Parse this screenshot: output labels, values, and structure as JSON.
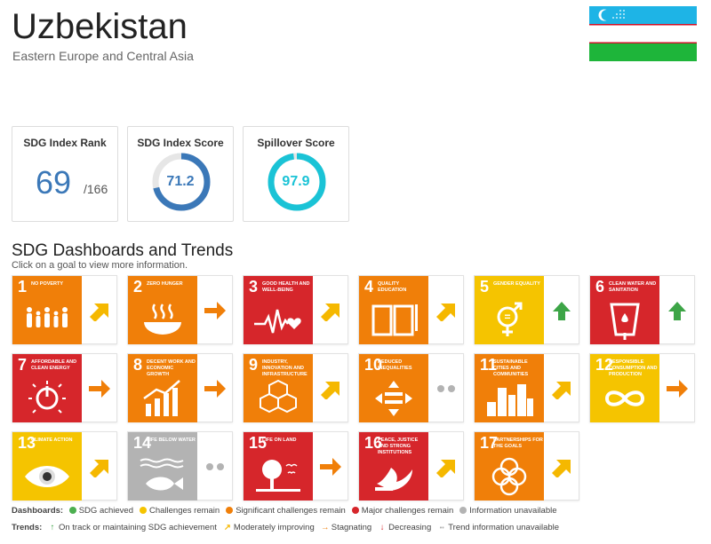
{
  "header": {
    "country": "Uzbekistan",
    "region": "Eastern Europe and Central Asia"
  },
  "flag": {
    "blue": "#1eb4e6",
    "white": "#ffffff",
    "red": "#ce1126",
    "green": "#1eb53a"
  },
  "cards": {
    "rank": {
      "title": "SDG Index Rank",
      "value": "69",
      "total": "/166"
    },
    "score": {
      "title": "SDG Index Score",
      "value": "71.2",
      "fraction": 0.712,
      "color": "#3b78b8"
    },
    "spillover": {
      "title": "Spillover Score",
      "value": "97.9",
      "fraction": 0.979,
      "color": "#1ac3d6"
    }
  },
  "dashboards": {
    "title": "SDG Dashboards and Trends",
    "subtitle": "Click on a goal to view more information."
  },
  "goals": [
    {
      "num": "1",
      "name": "No poverty",
      "color": "#e5243b",
      "status": "significant",
      "trend": "moderate",
      "icon": "people-icon"
    },
    {
      "num": "2",
      "name": "Zero hunger",
      "color": "#dda63a",
      "status": "significant",
      "trend": "stagnating",
      "icon": "bowl-icon"
    },
    {
      "num": "3",
      "name": "Good health and well-being",
      "color": "#4c9f38",
      "status": "major",
      "trend": "moderate",
      "icon": "heartbeat-icon"
    },
    {
      "num": "4",
      "name": "Quality education",
      "color": "#c5192d",
      "status": "significant",
      "trend": "moderate",
      "icon": "book-icon"
    },
    {
      "num": "5",
      "name": "Gender equality",
      "color": "#ff3a21",
      "status": "challenges",
      "trend": "on-track",
      "icon": "gender-icon"
    },
    {
      "num": "6",
      "name": "Clean water and sanitation",
      "color": "#26bde2",
      "status": "major",
      "trend": "on-track",
      "icon": "water-icon"
    },
    {
      "num": "7",
      "name": "Affordable and clean energy",
      "color": "#fcc30b",
      "status": "major",
      "trend": "stagnating",
      "icon": "power-icon"
    },
    {
      "num": "8",
      "name": "Decent work and economic growth",
      "color": "#a21942",
      "status": "significant",
      "trend": "stagnating",
      "icon": "growth-icon"
    },
    {
      "num": "9",
      "name": "Industry, innovation and infrastructure",
      "color": "#fd6925",
      "status": "significant",
      "trend": "moderate",
      "icon": "cubes-icon"
    },
    {
      "num": "10",
      "name": "Reduced inequalities",
      "color": "#dd1367",
      "status": "significant",
      "trend": "na",
      "icon": "equal-icon"
    },
    {
      "num": "11",
      "name": "Sustainable cities and communities",
      "color": "#fd9d24",
      "status": "significant",
      "trend": "moderate",
      "icon": "city-icon"
    },
    {
      "num": "12",
      "name": "Responsible consumption and production",
      "color": "#bf8b2e",
      "status": "challenges",
      "trend": "stagnating",
      "icon": "infinity-icon"
    },
    {
      "num": "13",
      "name": "Climate action",
      "color": "#3f7e44",
      "status": "challenges",
      "trend": "moderate",
      "icon": "eye-globe-icon"
    },
    {
      "num": "14",
      "name": "Life below water",
      "color": "#0a97d9",
      "status": "na",
      "trend": "na",
      "icon": "fish-icon"
    },
    {
      "num": "15",
      "name": "Life on land",
      "color": "#56c02b",
      "status": "major",
      "trend": "stagnating",
      "icon": "tree-icon"
    },
    {
      "num": "16",
      "name": "Peace, justice and strong institutions",
      "color": "#00689d",
      "status": "major",
      "trend": "moderate",
      "icon": "dove-icon"
    },
    {
      "num": "17",
      "name": "Partnerships for the goals",
      "color": "#19486a",
      "status": "significant",
      "trend": "moderate",
      "icon": "rings-icon"
    }
  ],
  "status_colors": {
    "achieved": "#4caf50",
    "challenges": "#f5c400",
    "significant": "#f07f09",
    "major": "#d6262b",
    "na": "#b3b3b3"
  },
  "trend_colors": {
    "on-track": "#3da547",
    "moderate": "#f5b800",
    "stagnating": "#f07f09",
    "decreasing": "#d6262b",
    "na": "#b3b3b3"
  },
  "legend": {
    "dashboards_label": "Dashboards:",
    "dashboards": [
      {
        "key": "achieved",
        "label": "SDG achieved"
      },
      {
        "key": "challenges",
        "label": "Challenges remain"
      },
      {
        "key": "significant",
        "label": "Significant challenges remain"
      },
      {
        "key": "major",
        "label": "Major challenges remain"
      },
      {
        "key": "na",
        "label": "Information unavailable"
      }
    ],
    "trends_label": "Trends:",
    "trends": [
      {
        "key": "on-track",
        "label": "On track or maintaining SDG achievement"
      },
      {
        "key": "moderate",
        "label": "Moderately improving"
      },
      {
        "key": "stagnating",
        "label": "Stagnating"
      },
      {
        "key": "decreasing",
        "label": "Decreasing"
      },
      {
        "key": "na",
        "label": "Trend information unavailable"
      }
    ]
  }
}
